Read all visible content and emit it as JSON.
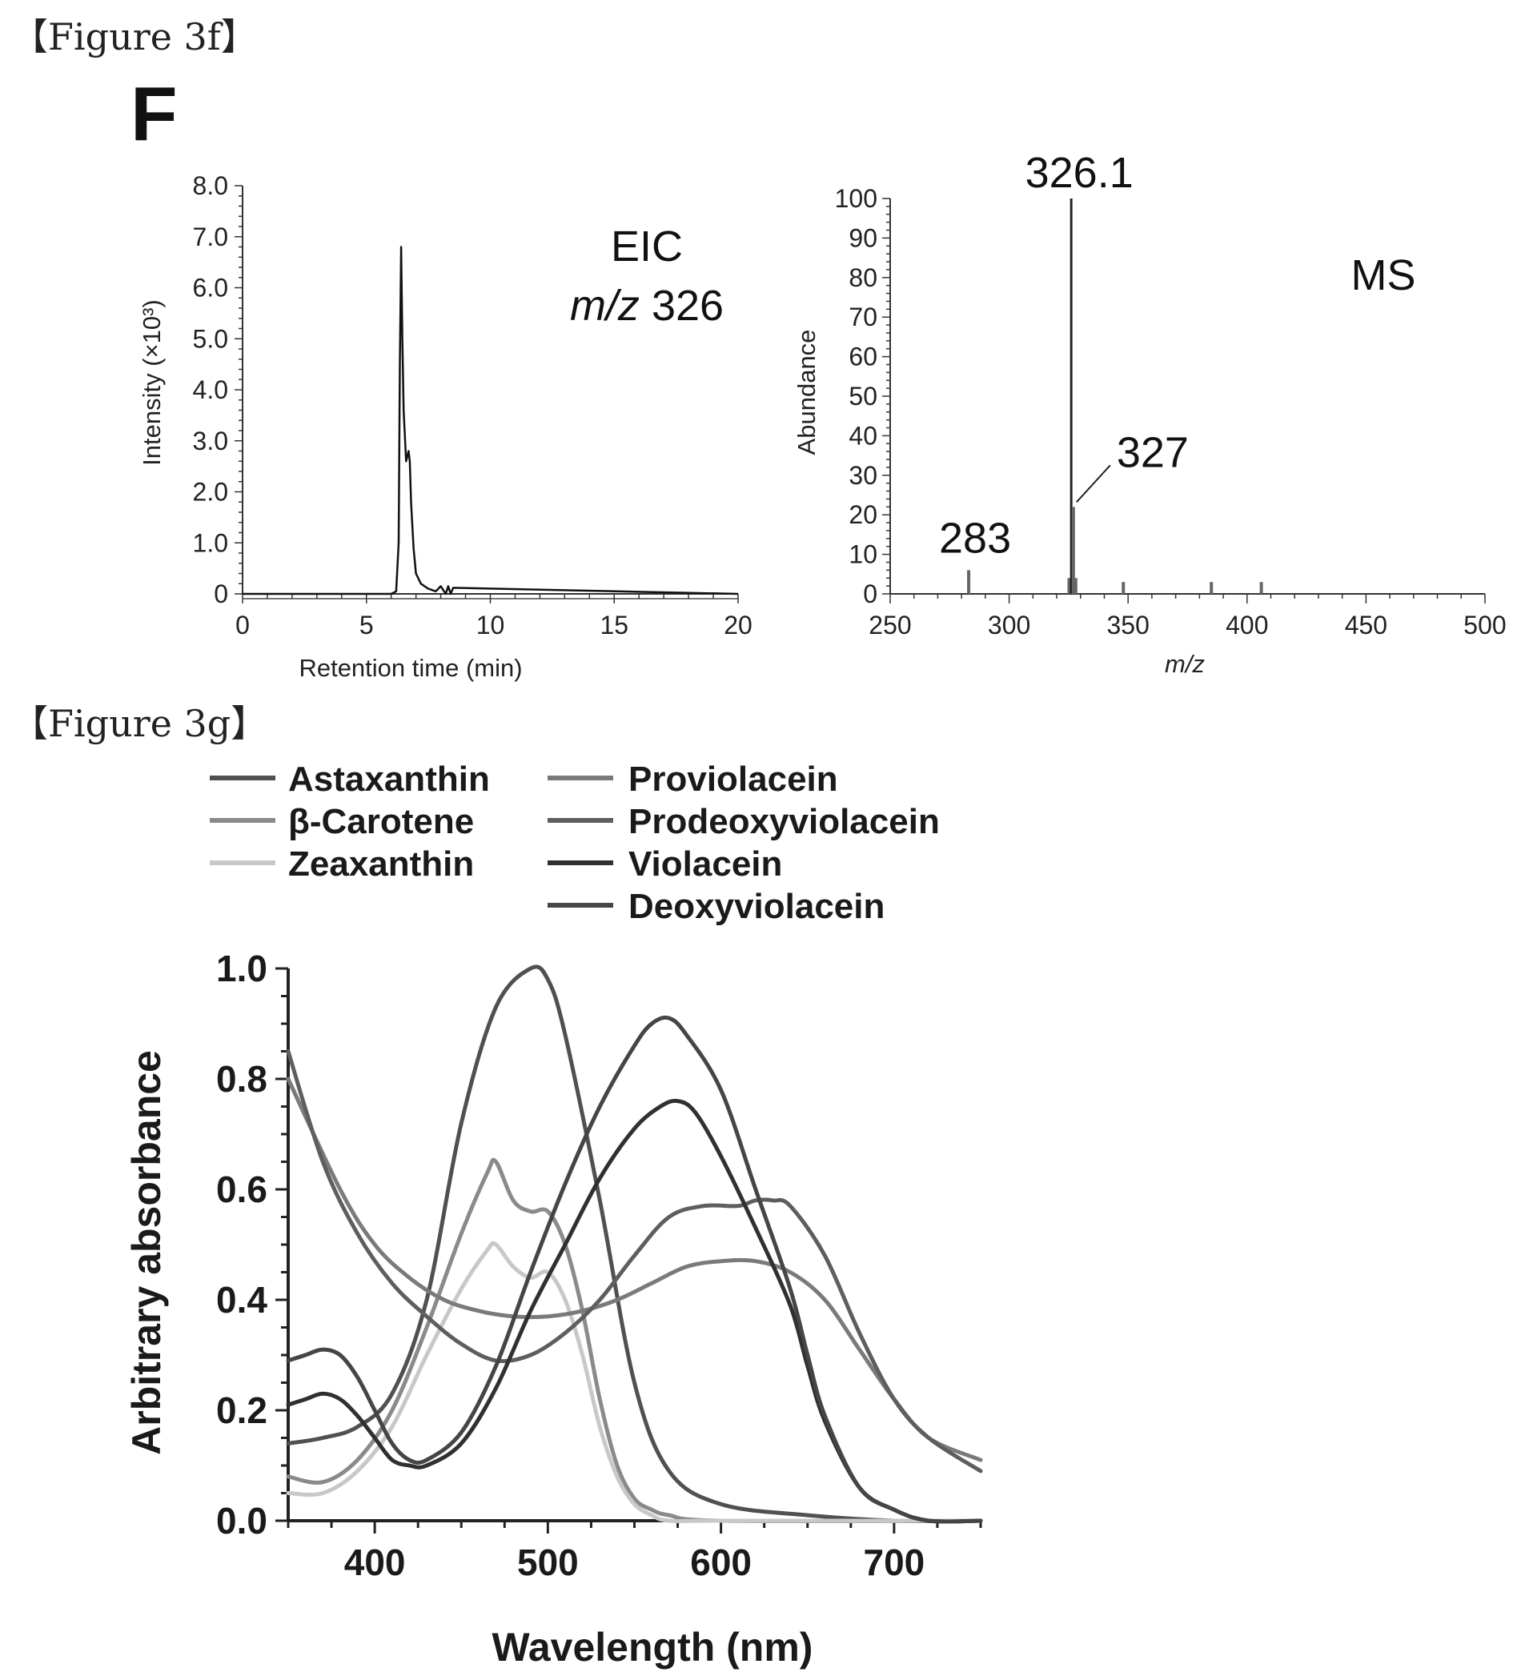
{
  "captions": {
    "f": "【Figure 3f】",
    "g": "【Figure 3g】"
  },
  "panel_f": {
    "letter": "F"
  },
  "chart_data": [
    {
      "type": "line",
      "annotation": [
        "EIC",
        "m/z",
        "326"
      ],
      "xlabel": "Retention time (min)",
      "ylabel": "Intensity (×10³)",
      "xlim": [
        0,
        20
      ],
      "ylim": [
        0,
        8.0
      ],
      "x_ticks": [
        "0",
        "5",
        "10",
        "15",
        "20"
      ],
      "y_ticks": [
        "0",
        "1.0",
        "2.0",
        "3.0",
        "4.0",
        "5.0",
        "6.0",
        "7.0",
        "8.0"
      ],
      "grid": false,
      "series": [
        {
          "x": [
            0,
            6.0,
            6.2,
            6.3,
            6.35,
            6.4,
            6.45,
            6.5,
            6.6,
            6.7,
            6.75,
            6.8,
            6.9,
            7.0,
            7.2,
            7.5,
            7.8,
            8.0,
            8.2,
            8.3,
            8.4,
            8.5,
            20
          ],
          "y": [
            0,
            0,
            0.05,
            1.0,
            4.5,
            6.8,
            5.0,
            3.6,
            2.6,
            2.8,
            2.6,
            1.8,
            0.9,
            0.4,
            0.2,
            0.1,
            0.05,
            0.15,
            0.0,
            0.15,
            0.0,
            0.12,
            0
          ]
        }
      ]
    },
    {
      "type": "bar",
      "annotation": [
        "MS"
      ],
      "xlabel": "m/z",
      "ylabel": "Abundance",
      "xlim": [
        250,
        500
      ],
      "ylim": [
        0,
        100
      ],
      "x_ticks": [
        "250",
        "300",
        "350",
        "400",
        "450",
        "500"
      ],
      "y_ticks": [
        "0",
        "10",
        "20",
        "30",
        "40",
        "50",
        "60",
        "70",
        "80",
        "90",
        "100"
      ],
      "peaks": [
        {
          "mz": 283,
          "abundance": 6,
          "label": "283"
        },
        {
          "mz": 325.2,
          "abundance": 4
        },
        {
          "mz": 326.1,
          "abundance": 100,
          "label": "326.1"
        },
        {
          "mz": 327,
          "abundance": 22,
          "label": "327"
        },
        {
          "mz": 328,
          "abundance": 4
        },
        {
          "mz": 348,
          "abundance": 3
        },
        {
          "mz": 385,
          "abundance": 3
        },
        {
          "mz": 406,
          "abundance": 3
        }
      ]
    },
    {
      "type": "line",
      "xlabel": "Wavelength (nm)",
      "ylabel": "Arbitrary absorbance",
      "xlim": [
        350,
        750
      ],
      "ylim": [
        0,
        1.0
      ],
      "x_ticks": [
        "400",
        "500",
        "600",
        "700"
      ],
      "y_ticks": [
        "0.0",
        "0.2",
        "0.4",
        "0.6",
        "0.8",
        "1.0"
      ],
      "legend": "top-left",
      "series": [
        {
          "name": "Astaxanthin",
          "color": "#505050",
          "x": [
            350,
            370,
            390,
            410,
            430,
            450,
            470,
            490,
            500,
            510,
            530,
            550,
            570,
            600,
            650,
            700,
            750
          ],
          "y": [
            0.14,
            0.15,
            0.17,
            0.23,
            0.4,
            0.72,
            0.93,
            1.0,
            0.98,
            0.88,
            0.58,
            0.25,
            0.09,
            0.03,
            0.01,
            0.0,
            0.0
          ]
        },
        {
          "name": "β-Carotene",
          "color": "#8a8a8a",
          "x": [
            350,
            370,
            390,
            410,
            430,
            450,
            465,
            470,
            480,
            490,
            500,
            510,
            520,
            530,
            540,
            550,
            560,
            570,
            600,
            750
          ],
          "y": [
            0.08,
            0.07,
            0.11,
            0.2,
            0.35,
            0.52,
            0.63,
            0.65,
            0.58,
            0.56,
            0.56,
            0.5,
            0.38,
            0.22,
            0.1,
            0.04,
            0.02,
            0.01,
            0.0,
            0.0
          ]
        },
        {
          "name": "Zeaxanthin",
          "color": "#c8c8c8",
          "x": [
            350,
            370,
            390,
            410,
            430,
            450,
            465,
            470,
            480,
            490,
            500,
            510,
            520,
            530,
            540,
            550,
            560,
            570,
            600,
            750
          ],
          "y": [
            0.05,
            0.05,
            0.09,
            0.17,
            0.3,
            0.42,
            0.49,
            0.5,
            0.46,
            0.44,
            0.45,
            0.4,
            0.3,
            0.17,
            0.08,
            0.03,
            0.01,
            0.0,
            0.0,
            0.0
          ]
        },
        {
          "name": "Proviolacein",
          "color": "#7a7a7a",
          "x": [
            350,
            380,
            400,
            420,
            440,
            460,
            480,
            500,
            520,
            540,
            560,
            580,
            600,
            620,
            640,
            660,
            680,
            700,
            720,
            750
          ],
          "y": [
            0.8,
            0.6,
            0.5,
            0.44,
            0.4,
            0.38,
            0.37,
            0.37,
            0.38,
            0.4,
            0.43,
            0.46,
            0.47,
            0.47,
            0.45,
            0.4,
            0.31,
            0.22,
            0.15,
            0.11
          ]
        },
        {
          "name": "Prodeoxyviolacein",
          "color": "#5e5e5e",
          "x": [
            350,
            370,
            390,
            410,
            430,
            450,
            470,
            490,
            510,
            530,
            550,
            570,
            590,
            610,
            620,
            630,
            640,
            660,
            680,
            700,
            720,
            750
          ],
          "y": [
            0.85,
            0.65,
            0.52,
            0.43,
            0.37,
            0.32,
            0.29,
            0.3,
            0.34,
            0.4,
            0.48,
            0.55,
            0.57,
            0.57,
            0.58,
            0.58,
            0.57,
            0.48,
            0.34,
            0.22,
            0.15,
            0.09
          ]
        },
        {
          "name": "Violacein",
          "color": "#303030",
          "x": [
            350,
            360,
            370,
            380,
            390,
            400,
            410,
            420,
            430,
            450,
            470,
            490,
            510,
            530,
            550,
            565,
            575,
            585,
            600,
            620,
            640,
            650,
            660,
            680,
            700,
            720,
            750
          ],
          "y": [
            0.21,
            0.22,
            0.23,
            0.22,
            0.19,
            0.15,
            0.11,
            0.1,
            0.1,
            0.14,
            0.24,
            0.38,
            0.5,
            0.62,
            0.71,
            0.75,
            0.76,
            0.74,
            0.66,
            0.53,
            0.39,
            0.28,
            0.18,
            0.06,
            0.02,
            0.0,
            0.0
          ]
        },
        {
          "name": "Deoxyviolacein",
          "color": "#454545",
          "x": [
            350,
            360,
            370,
            380,
            390,
            400,
            410,
            420,
            430,
            450,
            470,
            490,
            510,
            530,
            550,
            560,
            570,
            580,
            600,
            620,
            640,
            650,
            660,
            680,
            700,
            720,
            750
          ],
          "y": [
            0.29,
            0.3,
            0.31,
            0.3,
            0.26,
            0.2,
            0.14,
            0.11,
            0.11,
            0.16,
            0.28,
            0.45,
            0.61,
            0.75,
            0.86,
            0.9,
            0.91,
            0.88,
            0.78,
            0.6,
            0.42,
            0.3,
            0.19,
            0.06,
            0.02,
            0.0,
            0.0
          ]
        }
      ]
    }
  ]
}
